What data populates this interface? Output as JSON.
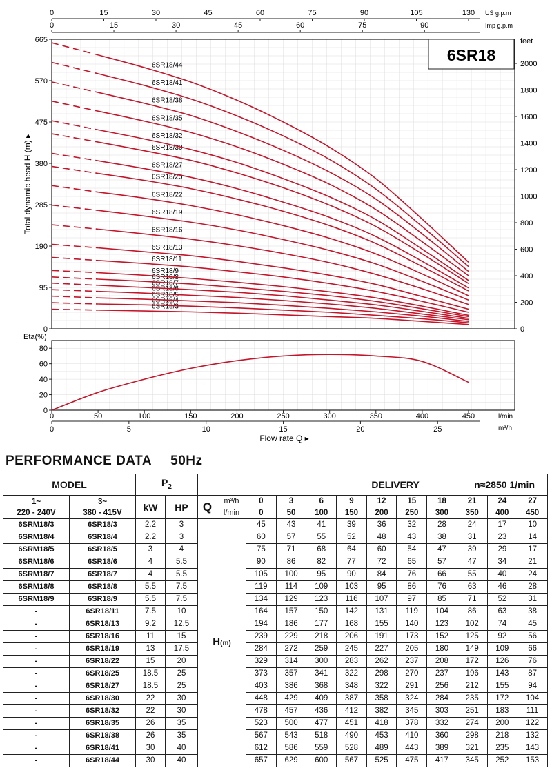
{
  "chart_data": [
    {
      "type": "line",
      "label": "6SR18",
      "ylabel": "Total dynamic head H (m)",
      "xlim": [
        0,
        450
      ],
      "ylim": [
        0,
        665
      ],
      "y_ticks": [
        0,
        95,
        190,
        285,
        380,
        475,
        570,
        665
      ],
      "y2_label": "feet",
      "y2_ticks": [
        0,
        200,
        400,
        600,
        800,
        1000,
        1200,
        1400,
        1600,
        1800,
        2000
      ],
      "top_axis_us": {
        "label": "US g.p.m",
        "ticks": [
          0,
          15,
          30,
          45,
          60,
          75,
          90,
          105,
          130
        ]
      },
      "top_axis_imp": {
        "label": "Imp g.p.m",
        "ticks": [
          0,
          15,
          30,
          45,
          60,
          75,
          90
        ]
      },
      "grid": true,
      "note": "dashed segment from 0 to 50 l/min",
      "x": [
        0,
        50,
        100,
        150,
        200,
        250,
        300,
        350,
        400,
        450
      ],
      "series": [
        {
          "name": "6SR18/3",
          "values": [
            45,
            43,
            41,
            39,
            36,
            32,
            28,
            24,
            17,
            10
          ]
        },
        {
          "name": "6SR18/4",
          "values": [
            60,
            57,
            55,
            52,
            48,
            43,
            38,
            31,
            23,
            14
          ]
        },
        {
          "name": "6SR18/5",
          "values": [
            75,
            71,
            68,
            64,
            60,
            54,
            47,
            39,
            29,
            17
          ]
        },
        {
          "name": "6SR18/6",
          "values": [
            90,
            86,
            82,
            77,
            72,
            65,
            57,
            47,
            34,
            21
          ]
        },
        {
          "name": "6SR18/7",
          "values": [
            105,
            100,
            95,
            90,
            84,
            76,
            66,
            55,
            40,
            24
          ]
        },
        {
          "name": "6SR18/8",
          "values": [
            119,
            114,
            109,
            103,
            95,
            86,
            76,
            63,
            46,
            28
          ]
        },
        {
          "name": "6SR18/9",
          "values": [
            134,
            129,
            123,
            116,
            107,
            97,
            85,
            71,
            52,
            31
          ]
        },
        {
          "name": "6SR18/11",
          "values": [
            164,
            157,
            150,
            142,
            131,
            119,
            104,
            86,
            63,
            38
          ]
        },
        {
          "name": "6SR18/13",
          "values": [
            194,
            186,
            177,
            168,
            155,
            140,
            123,
            102,
            74,
            45
          ]
        },
        {
          "name": "6SR18/16",
          "values": [
            239,
            229,
            218,
            206,
            191,
            173,
            152,
            125,
            92,
            56
          ]
        },
        {
          "name": "6SR18/19",
          "values": [
            284,
            272,
            259,
            245,
            227,
            205,
            180,
            149,
            109,
            66
          ]
        },
        {
          "name": "6SR18/22",
          "values": [
            329,
            314,
            300,
            283,
            262,
            237,
            208,
            172,
            126,
            76
          ]
        },
        {
          "name": "6SR18/25",
          "values": [
            373,
            357,
            341,
            322,
            298,
            270,
            237,
            196,
            143,
            87
          ]
        },
        {
          "name": "6SR18/27",
          "values": [
            403,
            386,
            368,
            348,
            322,
            291,
            256,
            212,
            155,
            94
          ]
        },
        {
          "name": "6SR18/30",
          "values": [
            448,
            429,
            409,
            387,
            358,
            324,
            284,
            235,
            172,
            104
          ]
        },
        {
          "name": "6SR18/32",
          "values": [
            478,
            457,
            436,
            412,
            382,
            345,
            303,
            251,
            183,
            111
          ]
        },
        {
          "name": "6SR18/35",
          "values": [
            523,
            500,
            477,
            451,
            418,
            378,
            332,
            274,
            200,
            122
          ]
        },
        {
          "name": "6SR18/38",
          "values": [
            567,
            543,
            518,
            490,
            453,
            410,
            360,
            298,
            218,
            132
          ]
        },
        {
          "name": "6SR18/41",
          "values": [
            612,
            586,
            559,
            528,
            489,
            443,
            389,
            321,
            235,
            143
          ]
        },
        {
          "name": "6SR18/44",
          "values": [
            657,
            629,
            600,
            567,
            525,
            475,
            417,
            345,
            252,
            153
          ]
        }
      ]
    },
    {
      "type": "line",
      "ylabel": "Eta(%)",
      "xlabel": "Flow rate Q",
      "xlim": [
        0,
        450
      ],
      "ylim": [
        0,
        90
      ],
      "y_ticks": [
        0,
        20,
        40,
        60,
        80
      ],
      "x_ticks_l_min": [
        0,
        50,
        100,
        150,
        200,
        250,
        300,
        350,
        400,
        450
      ],
      "x_unit_l_min": "l/min",
      "x_ticks_m3h": [
        0,
        5,
        10,
        15,
        20,
        25
      ],
      "x_unit_m3h": "m³/h",
      "grid": true,
      "x": [
        0,
        50,
        100,
        150,
        200,
        250,
        300,
        350,
        400,
        450
      ],
      "series": [
        {
          "values": [
            0,
            23,
            40,
            54,
            64,
            70,
            72,
            70,
            63,
            36
          ]
        }
      ]
    }
  ],
  "performance": {
    "title": "PERFORMANCE  DATA",
    "freq": "50Hz",
    "h_model": "MODEL",
    "h_p2": "P",
    "h_p2_sub": "2",
    "h_delivery": "DELIVERY",
    "h_speed": "n≈2850 1/min",
    "h_single": "1~",
    "h_single_v": "220 - 240V",
    "h_three": "3~",
    "h_three_v": "380 - 415V",
    "h_kw": "kW",
    "h_hp": "HP",
    "h_q": "Q",
    "h_m3h": "m³/h",
    "h_lmin": "l/min",
    "h_head": "H",
    "h_head_unit": "(m)",
    "q_m3h": [
      "0",
      "3",
      "6",
      "9",
      "12",
      "15",
      "18",
      "21",
      "24",
      "27"
    ],
    "q_lmin": [
      "0",
      "50",
      "100",
      "150",
      "200",
      "250",
      "300",
      "350",
      "400",
      "450"
    ],
    "rows": [
      {
        "m1": "6SRM18/3",
        "m3": "6SR18/3",
        "kw": "2.2",
        "hp": "3"
      },
      {
        "m1": "6SRM18/4",
        "m3": "6SR18/4",
        "kw": "2.2",
        "hp": "3"
      },
      {
        "m1": "6SRM18/5",
        "m3": "6SR18/5",
        "kw": "3",
        "hp": "4"
      },
      {
        "m1": "6SRM18/6",
        "m3": "6SR18/6",
        "kw": "4",
        "hp": "5.5"
      },
      {
        "m1": "6SRM18/7",
        "m3": "6SR18/7",
        "kw": "4",
        "hp": "5.5"
      },
      {
        "m1": "6SRM18/8",
        "m3": "6SR18/8",
        "kw": "5.5",
        "hp": "7.5"
      },
      {
        "m1": "6SRM18/9",
        "m3": "6SR18/9",
        "kw": "5.5",
        "hp": "7.5"
      },
      {
        "m1": "-",
        "m3": "6SR18/11",
        "kw": "7.5",
        "hp": "10"
      },
      {
        "m1": "-",
        "m3": "6SR18/13",
        "kw": "9.2",
        "hp": "12.5"
      },
      {
        "m1": "-",
        "m3": "6SR18/16",
        "kw": "11",
        "hp": "15"
      },
      {
        "m1": "-",
        "m3": "6SR18/19",
        "kw": "13",
        "hp": "17.5"
      },
      {
        "m1": "-",
        "m3": "6SR18/22",
        "kw": "15",
        "hp": "20"
      },
      {
        "m1": "-",
        "m3": "6SR18/25",
        "kw": "18.5",
        "hp": "25"
      },
      {
        "m1": "-",
        "m3": "6SR18/27",
        "kw": "18.5",
        "hp": "25"
      },
      {
        "m1": "-",
        "m3": "6SR18/30",
        "kw": "22",
        "hp": "30"
      },
      {
        "m1": "-",
        "m3": "6SR18/32",
        "kw": "22",
        "hp": "30"
      },
      {
        "m1": "-",
        "m3": "6SR18/35",
        "kw": "26",
        "hp": "35"
      },
      {
        "m1": "-",
        "m3": "6SR18/38",
        "kw": "26",
        "hp": "35"
      },
      {
        "m1": "-",
        "m3": "6SR18/41",
        "kw": "30",
        "hp": "40"
      },
      {
        "m1": "-",
        "m3": "6SR18/44",
        "kw": "30",
        "hp": "40"
      }
    ]
  },
  "colors": {
    "curve": "#c4162a",
    "grid": "#b5b5b5",
    "axis": "#222222"
  }
}
